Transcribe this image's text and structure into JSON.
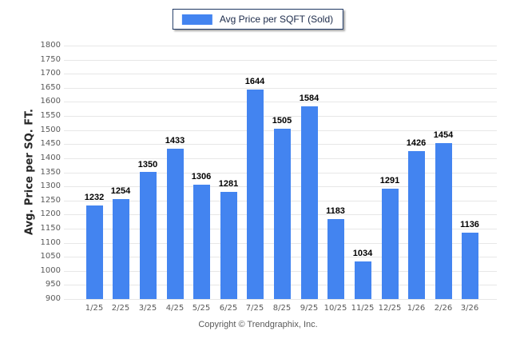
{
  "chart_data": {
    "type": "bar",
    "title": "",
    "legend": [
      {
        "label": "Avg Price per SQFT (Sold)",
        "color": "#4384f0"
      }
    ],
    "legend_position": "top-center",
    "categories": [
      "1/25",
      "2/25",
      "3/25",
      "4/25",
      "5/25",
      "6/25",
      "7/25",
      "8/25",
      "9/25",
      "10/25",
      "11/25",
      "12/25",
      "1/26",
      "2/26",
      "3/26"
    ],
    "series": [
      {
        "name": "Avg Price per SQFT (Sold)",
        "values": [
          1232,
          1254,
          1350,
          1433,
          1306,
          1281,
          1644,
          1505,
          1584,
          1183,
          1034,
          1291,
          1426,
          1454,
          1136
        ]
      }
    ],
    "xlabel": "",
    "ylabel": "Avg. Price per SQ. FT.",
    "ylim": [
      900,
      1800
    ],
    "ytick_step": 50,
    "grid": "horizontal",
    "value_labels": true
  },
  "footer": {
    "copyright": "Copyright © Trendgraphix, Inc."
  },
  "colors": {
    "bar": "#4384f0",
    "gridline": "#e7e7e7",
    "axis_text": "#595959",
    "value_label_text": "#000000",
    "legend_border": "#1f3864",
    "legend_text": "#1b2a4a",
    "background": "#ffffff"
  }
}
